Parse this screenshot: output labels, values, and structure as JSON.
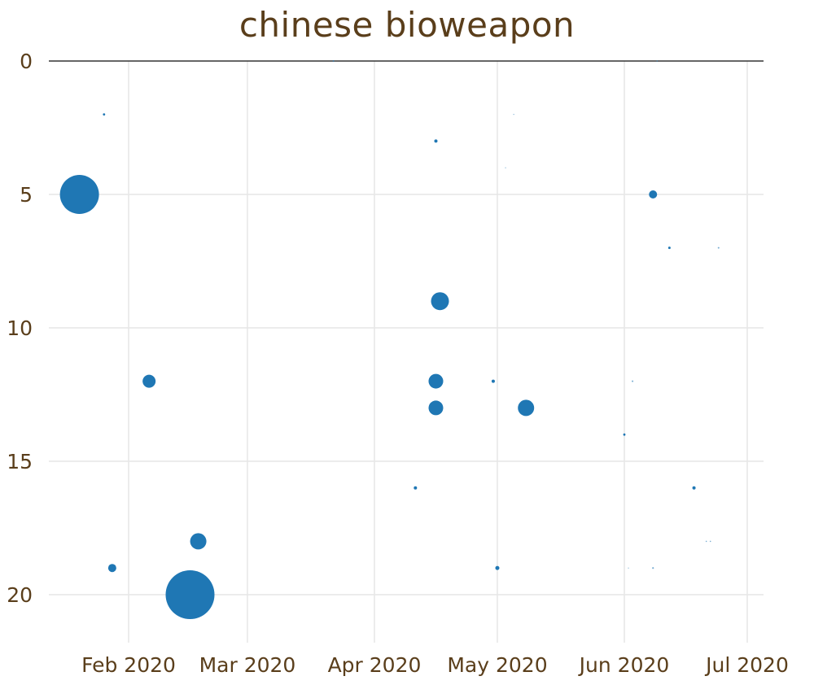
{
  "chart_data": {
    "type": "scatter",
    "title": "chinese bioweapon",
    "xlabel": "",
    "ylabel": "",
    "x_axis": {
      "type": "date",
      "range": [
        "2020-01-14",
        "2020-07-09"
      ],
      "ticks": [
        {
          "date": "2020-02-01",
          "label": "Feb 2020"
        },
        {
          "date": "2020-03-01",
          "label": "Mar 2020"
        },
        {
          "date": "2020-04-01",
          "label": "Apr 2020"
        },
        {
          "date": "2020-05-01",
          "label": "May 2020"
        },
        {
          "date": "2020-06-01",
          "label": "Jun 2020"
        },
        {
          "date": "2020-07-01",
          "label": "Jul 2020"
        }
      ]
    },
    "y_axis": {
      "reversed": true,
      "range": [
        0,
        22
      ],
      "ticks": [
        0,
        5,
        10,
        15,
        20
      ]
    },
    "grid": true,
    "marker_color": "#1f77b4",
    "points": [
      {
        "date": "2020-01-26",
        "y": 2,
        "size": 1.4
      },
      {
        "date": "2020-01-20",
        "y": 5,
        "size": 24
      },
      {
        "date": "2020-02-06",
        "y": 12,
        "size": 8
      },
      {
        "date": "2020-01-28",
        "y": 19,
        "size": 5
      },
      {
        "date": "2020-02-16",
        "y": 20,
        "size": 30
      },
      {
        "date": "2020-02-18",
        "y": 18,
        "size": 10
      },
      {
        "date": "2020-03-22",
        "y": 0,
        "size": 1
      },
      {
        "date": "2020-04-16",
        "y": 3,
        "size": 2
      },
      {
        "date": "2020-04-17",
        "y": 9,
        "size": 11
      },
      {
        "date": "2020-04-16",
        "y": 12,
        "size": 9
      },
      {
        "date": "2020-04-16",
        "y": 13,
        "size": 9
      },
      {
        "date": "2020-04-11",
        "y": 16,
        "size": 2
      },
      {
        "date": "2020-04-30",
        "y": 12,
        "size": 2
      },
      {
        "date": "2020-05-01",
        "y": 19,
        "size": 2.5
      },
      {
        "date": "2020-05-08",
        "y": 13,
        "size": 10
      },
      {
        "date": "2020-05-05",
        "y": 2,
        "size": 0.6
      },
      {
        "date": "2020-05-03",
        "y": 4,
        "size": 0.6
      },
      {
        "date": "2020-06-09",
        "y": 0,
        "size": 0.8
      },
      {
        "date": "2020-06-08",
        "y": 5,
        "size": 5
      },
      {
        "date": "2020-06-12",
        "y": 7,
        "size": 1.5
      },
      {
        "date": "2020-06-24",
        "y": 7,
        "size": 1
      },
      {
        "date": "2020-06-03",
        "y": 12,
        "size": 1
      },
      {
        "date": "2020-06-01",
        "y": 14,
        "size": 1.4
      },
      {
        "date": "2020-06-18",
        "y": 16,
        "size": 2
      },
      {
        "date": "2020-06-21",
        "y": 18,
        "size": 0.8
      },
      {
        "date": "2020-06-22",
        "y": 18,
        "size": 0.8
      },
      {
        "date": "2020-06-08",
        "y": 19,
        "size": 1.1
      },
      {
        "date": "2020-06-02",
        "y": 19,
        "size": 0.5
      }
    ]
  }
}
